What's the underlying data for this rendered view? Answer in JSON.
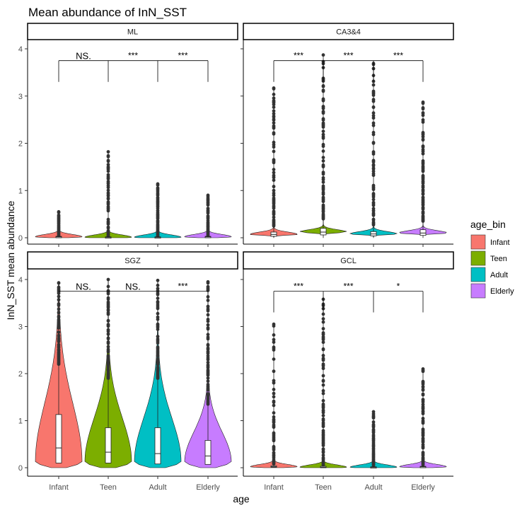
{
  "chart_data": {
    "type": "violin",
    "title": "Mean abundance of InN_SST",
    "xlabel": "age",
    "ylabel": "InN_SST mean abundance",
    "categories": [
      "Infant",
      "Teen",
      "Adult",
      "Elderly"
    ],
    "ylim": [
      0,
      4
    ],
    "yticks": [
      "0",
      "1",
      "2",
      "3",
      "4"
    ],
    "grid": false,
    "legend": {
      "title": "age_bin",
      "position": "right",
      "entries": [
        {
          "label": "Infant",
          "color": "#F8766D"
        },
        {
          "label": "Teen",
          "color": "#7CAE00"
        },
        {
          "label": "Adult",
          "color": "#00BFC4"
        },
        {
          "label": "Elderly",
          "color": "#C77CFF"
        }
      ]
    },
    "panels": [
      {
        "name": "ML",
        "significance": [
          "NS.",
          "***",
          "***"
        ],
        "bracket_y": 3.75,
        "groups": [
          {
            "category": "Infant",
            "median": 0.02,
            "q1": 0.01,
            "q3": 0.03,
            "whisker_high": 0.05,
            "max_outlier": 0.55
          },
          {
            "category": "Teen",
            "median": 0.01,
            "q1": 0.0,
            "q3": 0.02,
            "whisker_high": 0.04,
            "max_outlier": 1.82
          },
          {
            "category": "Adult",
            "median": 0.01,
            "q1": 0.0,
            "q3": 0.02,
            "whisker_high": 0.04,
            "max_outlier": 1.14
          },
          {
            "category": "Elderly",
            "median": 0.02,
            "q1": 0.01,
            "q3": 0.03,
            "whisker_high": 0.05,
            "max_outlier": 0.9
          }
        ]
      },
      {
        "name": "CA3&4",
        "significance": [
          "***",
          "***",
          "***"
        ],
        "bracket_y": 3.75,
        "groups": [
          {
            "category": "Infant",
            "median": 0.07,
            "q1": 0.03,
            "q3": 0.12,
            "whisker_high": 0.25,
            "max_outlier": 3.17
          },
          {
            "category": "Teen",
            "median": 0.12,
            "q1": 0.06,
            "q3": 0.2,
            "whisker_high": 0.4,
            "max_outlier": 3.87
          },
          {
            "category": "Adult",
            "median": 0.08,
            "q1": 0.04,
            "q3": 0.13,
            "whisker_high": 0.27,
            "max_outlier": 3.69
          },
          {
            "category": "Elderly",
            "median": 0.1,
            "q1": 0.05,
            "q3": 0.17,
            "whisker_high": 0.35,
            "max_outlier": 2.87
          }
        ]
      },
      {
        "name": "SGZ",
        "significance": [
          "NS.",
          "NS.",
          "***"
        ],
        "bracket_y": 3.75,
        "groups": [
          {
            "category": "Infant",
            "median": 0.42,
            "q1": 0.1,
            "q3": 1.13,
            "whisker_high": 2.2,
            "max_outlier": 3.93
          },
          {
            "category": "Teen",
            "median": 0.33,
            "q1": 0.1,
            "q3": 0.85,
            "whisker_high": 1.9,
            "max_outlier": 4.0
          },
          {
            "category": "Adult",
            "median": 0.3,
            "q1": 0.08,
            "q3": 0.85,
            "whisker_high": 1.9,
            "max_outlier": 3.98
          },
          {
            "category": "Elderly",
            "median": 0.25,
            "q1": 0.07,
            "q3": 0.58,
            "whisker_high": 1.35,
            "max_outlier": 3.95
          }
        ]
      },
      {
        "name": "GCL",
        "significance": [
          "***",
          "***",
          "*"
        ],
        "bracket_y": 3.75,
        "groups": [
          {
            "category": "Infant",
            "median": 0.02,
            "q1": 0.01,
            "q3": 0.04,
            "whisker_high": 0.08,
            "max_outlier": 3.05
          },
          {
            "category": "Teen",
            "median": 0.01,
            "q1": 0.0,
            "q3": 0.03,
            "whisker_high": 0.06,
            "max_outlier": 3.58
          },
          {
            "category": "Adult",
            "median": 0.01,
            "q1": 0.0,
            "q3": 0.02,
            "whisker_high": 0.05,
            "max_outlier": 1.19
          },
          {
            "category": "Elderly",
            "median": 0.02,
            "q1": 0.01,
            "q3": 0.03,
            "whisker_high": 0.06,
            "max_outlier": 2.1
          }
        ]
      }
    ]
  }
}
